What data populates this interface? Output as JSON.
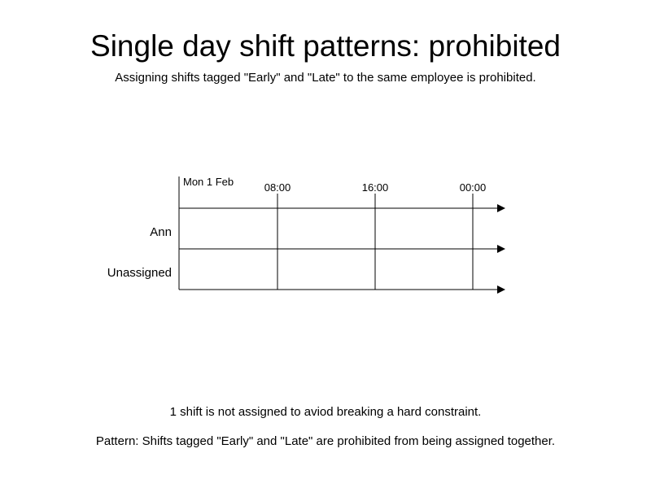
{
  "header": {
    "title": "Single day shift patterns: prohibited",
    "subtitle": "Assigning shifts tagged \"Early\" and \"Late\" to the same employee is prohibited."
  },
  "timeline": {
    "day_label": "Mon 1 Feb",
    "time_labels": [
      "08:00",
      "16:00",
      "00:00"
    ],
    "rows": [
      {
        "label": "Ann"
      },
      {
        "label": "Unassigned"
      }
    ]
  },
  "footer": {
    "note_1": "1 shift is not assigned to aviod breaking a hard constraint.",
    "note_2": "Pattern: Shifts tagged \"Early\" and \"Late\" are prohibited from being assigned together."
  }
}
